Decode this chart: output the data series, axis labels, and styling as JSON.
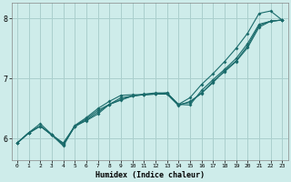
{
  "xlabel": "Humidex (Indice chaleur)",
  "ylabel": "",
  "bg_color": "#ceecea",
  "grid_color": "#aacfcd",
  "line_color": "#1a6b6b",
  "xlim": [
    -0.5,
    23.5
  ],
  "ylim": [
    5.65,
    8.25
  ],
  "yticks": [
    6,
    7,
    8
  ],
  "xticks": [
    0,
    1,
    2,
    3,
    4,
    5,
    6,
    7,
    8,
    9,
    10,
    11,
    12,
    13,
    14,
    15,
    16,
    17,
    18,
    19,
    20,
    21,
    22,
    23
  ],
  "series": [
    [
      5.93,
      6.1,
      6.21,
      6.06,
      5.93,
      6.21,
      6.33,
      6.47,
      6.57,
      6.68,
      6.71,
      6.73,
      6.74,
      6.74,
      6.55,
      6.62,
      6.75,
      6.95,
      7.11,
      7.28,
      7.51,
      7.85,
      7.95,
      7.97
    ],
    [
      5.93,
      6.1,
      6.21,
      6.06,
      5.88,
      6.21,
      6.3,
      6.41,
      6.57,
      6.64,
      6.71,
      6.74,
      6.76,
      6.76,
      6.57,
      6.56,
      6.8,
      6.98,
      7.15,
      7.33,
      7.58,
      7.9,
      7.95,
      7.97
    ],
    [
      5.93,
      6.09,
      6.21,
      6.07,
      5.91,
      6.2,
      6.31,
      6.44,
      6.57,
      6.65,
      6.71,
      6.73,
      6.74,
      6.76,
      6.57,
      6.6,
      6.76,
      6.93,
      7.13,
      7.29,
      7.54,
      7.88,
      7.95,
      7.97
    ],
    [
      5.93,
      6.1,
      6.25,
      6.07,
      5.9,
      6.22,
      6.35,
      6.5,
      6.62,
      6.72,
      6.73,
      6.73,
      6.75,
      6.75,
      6.57,
      6.68,
      6.9,
      7.08,
      7.28,
      7.5,
      7.75,
      8.08,
      8.12,
      7.97
    ]
  ]
}
